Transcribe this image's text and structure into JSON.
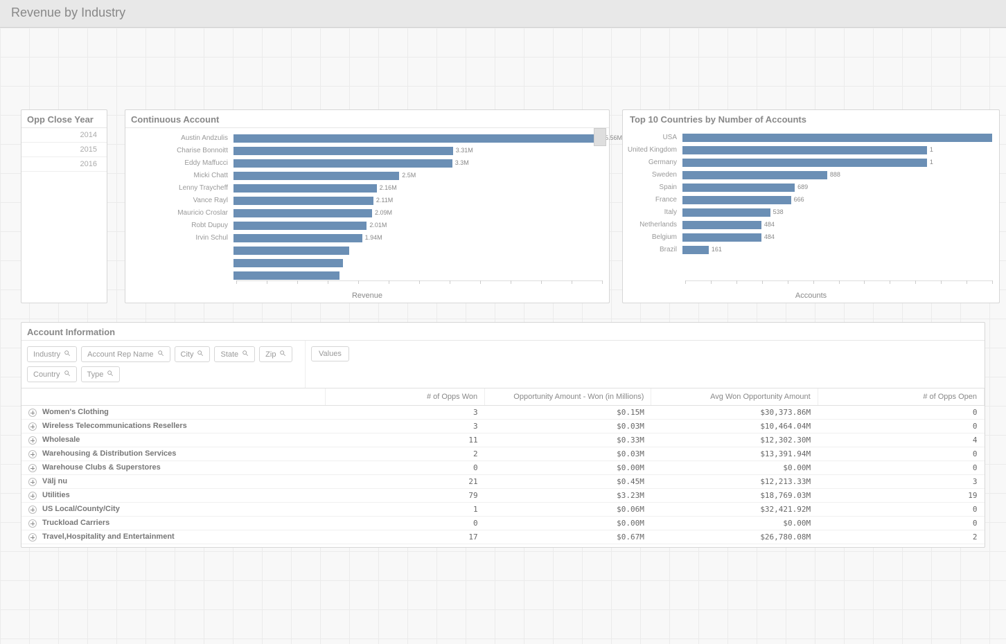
{
  "page_title": "Revenue by Industry",
  "colors": {
    "bar": "#6b8fb5",
    "panel_border": "#d6d6d6",
    "text_muted": "#888888",
    "grid_line": "#e5e5e5"
  },
  "year_panel": {
    "title": "Opp Close Year",
    "years": [
      "2014",
      "2015",
      "2016"
    ]
  },
  "continuous_account": {
    "title": "Continuous Account",
    "axis_label": "Revenue",
    "max_value": 5.56,
    "rows": [
      {
        "label": "Austin Andzulis",
        "value": 5.56,
        "display": "5.56M"
      },
      {
        "label": "Charise Bonnoitt",
        "value": 3.31,
        "display": "3.31M"
      },
      {
        "label": "Eddy Maffucci",
        "value": 3.3,
        "display": "3.3M"
      },
      {
        "label": "Micki Chatt",
        "value": 2.5,
        "display": "2.5M"
      },
      {
        "label": "Lenny Traycheff",
        "value": 2.16,
        "display": "2.16M"
      },
      {
        "label": "Vance Rayl",
        "value": 2.11,
        "display": "2.11M"
      },
      {
        "label": "Mauricio Croslar",
        "value": 2.09,
        "display": "2.09M"
      },
      {
        "label": "Robt Dupuy",
        "value": 2.01,
        "display": "2.01M"
      },
      {
        "label": "Irvin Schul",
        "value": 1.94,
        "display": "1.94M"
      },
      {
        "label": "",
        "value": 1.75,
        "display": ""
      },
      {
        "label": "",
        "value": 1.65,
        "display": ""
      },
      {
        "label": "",
        "value": 1.6,
        "display": ""
      }
    ]
  },
  "top_countries": {
    "title": "Top 10 Countries by Number of Accounts",
    "axis_label": "Accounts",
    "max_value": 1900,
    "rows": [
      {
        "label": "USA",
        "value": 1900,
        "display": ""
      },
      {
        "label": "United Kingdom",
        "value": 1500,
        "display": "1"
      },
      {
        "label": "Germany",
        "value": 1500,
        "display": "1"
      },
      {
        "label": "Sweden",
        "value": 888,
        "display": "888"
      },
      {
        "label": "Spain",
        "value": 689,
        "display": "689"
      },
      {
        "label": "France",
        "value": 666,
        "display": "666"
      },
      {
        "label": "Italy",
        "value": 538,
        "display": "538"
      },
      {
        "label": "Netherlands",
        "value": 484,
        "display": "484"
      },
      {
        "label": "Belgium",
        "value": 484,
        "display": "484"
      },
      {
        "label": "Brazil",
        "value": 161,
        "display": "161"
      }
    ]
  },
  "account_info": {
    "title": "Account Information",
    "filters_left": [
      "Industry",
      "Account Rep Name",
      "City",
      "State",
      "Zip",
      "Country",
      "Type"
    ],
    "filters_right_label": "Values",
    "columns": [
      "",
      "# of Opps Won",
      "Opportunity Amount - Won (in Millions)",
      "Avg Won Opportunity Amount",
      "# of Opps Open"
    ],
    "col_widths": [
      "420px",
      "220px",
      "230px",
      "230px",
      "230px"
    ],
    "rows": [
      {
        "industry": "Women's Clothing",
        "won": "3",
        "amt": "$0.15M",
        "avg": "$30,373.86M",
        "open": "0"
      },
      {
        "industry": "Wireless Telecommunications Resellers",
        "won": "3",
        "amt": "$0.03M",
        "avg": "$10,464.04M",
        "open": "0"
      },
      {
        "industry": "Wholesale",
        "won": "11",
        "amt": "$0.33M",
        "avg": "$12,302.30M",
        "open": "4"
      },
      {
        "industry": "Warehousing & Distribution Services",
        "won": "2",
        "amt": "$0.03M",
        "avg": "$13,391.94M",
        "open": "0"
      },
      {
        "industry": "Warehouse Clubs & Superstores",
        "won": "0",
        "amt": "$0.00M",
        "avg": "$0.00M",
        "open": "0"
      },
      {
        "industry": "Välj nu",
        "won": "21",
        "amt": "$0.45M",
        "avg": "$12,213.33M",
        "open": "3"
      },
      {
        "industry": "Utilities",
        "won": "79",
        "amt": "$3.23M",
        "avg": "$18,769.03M",
        "open": "19"
      },
      {
        "industry": "US Local/County/City",
        "won": "1",
        "amt": "$0.06M",
        "avg": "$32,421.92M",
        "open": "0"
      },
      {
        "industry": "Truckload Carriers",
        "won": "0",
        "amt": "$0.00M",
        "avg": "$0.00M",
        "open": "0"
      },
      {
        "industry": "Travel,Hospitality and Entertainment",
        "won": "17",
        "amt": "$0.67M",
        "avg": "$26,780.08M",
        "open": "2"
      }
    ]
  }
}
